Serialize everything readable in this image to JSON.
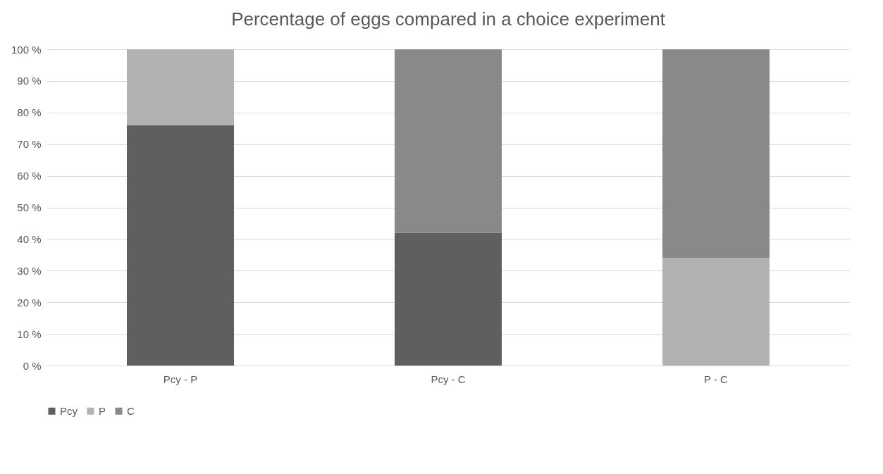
{
  "chart_data": {
    "type": "bar",
    "title": "Percentage of eggs compared in a choice experiment",
    "categories": [
      "Pcy - P",
      "Pcy - C",
      "P - C"
    ],
    "series": [
      {
        "name": "Pcy",
        "color": "#5f5f5f",
        "values": [
          76,
          42,
          null
        ]
      },
      {
        "name": "P",
        "color": "#b2b2b2",
        "values": [
          24,
          null,
          34
        ]
      },
      {
        "name": "C",
        "color": "#898989",
        "values": [
          null,
          58,
          66
        ]
      }
    ],
    "stacked": true,
    "ylim": [
      0,
      100
    ],
    "yticks": [
      {
        "value": 0,
        "label": "0 %"
      },
      {
        "value": 10,
        "label": "10 %"
      },
      {
        "value": 20,
        "label": "20 %"
      },
      {
        "value": 30,
        "label": "30 %"
      },
      {
        "value": 40,
        "label": "40 %"
      },
      {
        "value": 50,
        "label": "50 %"
      },
      {
        "value": 60,
        "label": "60 %"
      },
      {
        "value": 70,
        "label": "70 %"
      },
      {
        "value": 80,
        "label": "80 %"
      },
      {
        "value": 90,
        "label": "90 %"
      },
      {
        "value": 100,
        "label": "100 %"
      }
    ],
    "grid": "y",
    "legend": "bottom"
  }
}
